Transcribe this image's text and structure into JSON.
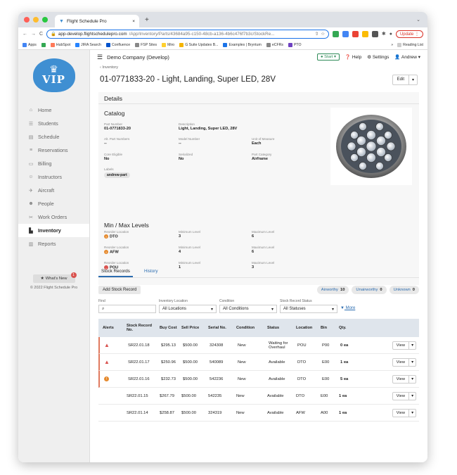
{
  "browser": {
    "tab_title": "Flight Schedule Pro",
    "url_host": "app-develop.flightschedulepro.com",
    "url_path": "/App/Inventory/Parts/43684a95-c150-48cb-a136-4b6c476f7b3c/StockRe...",
    "update_label": "Update",
    "bookmarks": [
      "Apps",
      "HubSpot",
      "JIRA Search",
      "Confluence",
      "FSP Sites",
      "Miro",
      "G Suite Updates B...",
      "Examples | Bryntum",
      "eCFRs",
      "PTO"
    ],
    "reading_list": "Reading List"
  },
  "sidebar": {
    "logo_text": "VIP",
    "items": [
      {
        "label": "Home",
        "icon": "home-icon"
      },
      {
        "label": "Students",
        "icon": "students-icon"
      },
      {
        "label": "Schedule",
        "icon": "calendar-icon"
      },
      {
        "label": "Reservations",
        "icon": "list-icon"
      },
      {
        "label": "Billing",
        "icon": "billing-icon"
      },
      {
        "label": "Instructors",
        "icon": "instructor-icon"
      },
      {
        "label": "Aircraft",
        "icon": "plane-icon"
      },
      {
        "label": "People",
        "icon": "people-icon"
      },
      {
        "label": "Work Orders",
        "icon": "wrench-icon"
      },
      {
        "label": "Inventory",
        "icon": "inventory-icon"
      },
      {
        "label": "Reports",
        "icon": "chart-icon"
      }
    ],
    "whats_new": "What's New",
    "whats_new_count": "1",
    "copyright": "© 2022 Flight Schedule Pro"
  },
  "topbar": {
    "company": "Demo Company (Develop)",
    "start": "Start",
    "help": "Help",
    "settings": "Settings",
    "user": "Andrew"
  },
  "page": {
    "back": "Inventory",
    "title": "01-0771833-20 - Light, Landing, Super LED, 28V",
    "edit": "Edit"
  },
  "details": {
    "header": "Details",
    "catalog_title": "Catalog",
    "part_number_label": "Part Number",
    "part_number": "01-0771833-20",
    "description_label": "Description",
    "description": "Light, Landing, Super LED, 28V",
    "alt_part_label": "Alt. Part Numbers",
    "alt_part": "--",
    "model_label": "Model Number",
    "model": "--",
    "uom_label": "Unit of Measure",
    "uom": "Each",
    "core_label": "Core Eligible",
    "core": "No",
    "serialized_label": "Serialized",
    "serialized": "No",
    "category_label": "Part Category",
    "category": "Airframe",
    "labels_label": "Labels",
    "label_chip": "andrew-part",
    "minmax_title": "Min / Max Levels",
    "levels": [
      {
        "loc_label": "Reorder Location",
        "loc": "DTO",
        "min_label": "Minimum Level",
        "min": "3",
        "max_label": "Maximum Level",
        "max": "6",
        "color": "#e58a2e"
      },
      {
        "loc_label": "Reorder Location",
        "loc": "AFW",
        "min_label": "Minimum Level",
        "min": "4",
        "max_label": "Maximum Level",
        "max": "6",
        "color": "#e58a2e"
      },
      {
        "loc_label": "Reorder Location",
        "loc": "POU",
        "min_label": "Minimum Level",
        "min": "1",
        "max_label": "Maximum Level",
        "max": "3",
        "color": "#d9534f"
      }
    ]
  },
  "tabs": {
    "stock": "Stock Records",
    "history": "History"
  },
  "actions": {
    "add": "Add Stock Record",
    "airworthy_label": "Airworthy",
    "airworthy": "10",
    "unairworthy_label": "Unairworthy",
    "unairworthy": "0",
    "unknown_label": "Unknown",
    "unknown": "0"
  },
  "filters": {
    "find_label": "Find",
    "location_label": "Inventory Location",
    "location": "All Locations",
    "condition_label": "Condition",
    "condition": "All Conditions",
    "status_label": "Stock Record Status",
    "status": "All Statuses",
    "more": "More"
  },
  "table": {
    "headers": [
      "Alerts",
      "Stock Record No.",
      "Buy Cost",
      "Sell Price",
      "Serial No.",
      "Condition",
      "Status",
      "Location",
      "Bin",
      "Qty."
    ],
    "rows": [
      {
        "alert": "triangle",
        "record": "SR22.01.18",
        "buy": "$295.13",
        "sell": "$500.00",
        "serial": "324308",
        "condition": "New",
        "status": "Waiting for Overhaul",
        "location": "POU",
        "bin": "P00",
        "qty": "0 ea"
      },
      {
        "alert": "triangle",
        "record": "SR22.01.17",
        "buy": "$250.96",
        "sell": "$500.00",
        "serial": "540089",
        "condition": "New",
        "status": "Available",
        "location": "DTO",
        "bin": "E00",
        "qty": "1 ea"
      },
      {
        "alert": "circle",
        "record": "SR22.01.16",
        "buy": "$232.73",
        "sell": "$500.00",
        "serial": "542236",
        "condition": "New",
        "status": "Available",
        "location": "DTO",
        "bin": "E00",
        "qty": "5 ea"
      },
      {
        "alert": "",
        "record": "SR22.01.15",
        "buy": "$267.79",
        "sell": "$500.00",
        "serial": "542235",
        "condition": "New",
        "status": "Available",
        "location": "DTO",
        "bin": "E00",
        "qty": "1 ea"
      },
      {
        "alert": "",
        "record": "SR22.01.14",
        "buy": "$258.87",
        "sell": "$500.00",
        "serial": "324319",
        "condition": "New",
        "status": "Available",
        "location": "AFW",
        "bin": "A00",
        "qty": "1 ea"
      }
    ],
    "view": "View"
  }
}
